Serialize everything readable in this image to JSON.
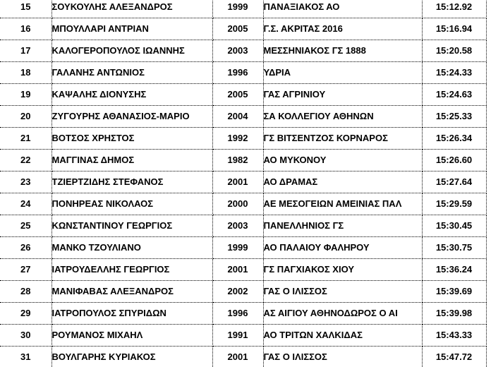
{
  "page": {
    "background": "#ffffff"
  },
  "colors": {
    "text": "#000000",
    "grid_lines": "#000000"
  },
  "results_table": {
    "rows": [
      {
        "rank": "15",
        "name": "ΣΟΥΚΟΥΛΗΣ ΑΛΕΞΑΝΔΡΟΣ",
        "year": "1999",
        "club": "ΠΑΝΑΞΙΑΚΟΣ ΑΟ",
        "time": "15:12.92"
      },
      {
        "rank": "16",
        "name": "ΜΠΟΥΛΛΑΡΙ ΑΝΤΡΙΑΝ",
        "year": "2005",
        "club": "Γ.Σ. ΑΚΡΙΤΑΣ 2016",
        "time": "15:16.94"
      },
      {
        "rank": "17",
        "name": "ΚΑΛΟΓΕΡΟΠΟΥΛΟΣ ΙΩΑΝΝΗΣ",
        "year": "2003",
        "club": "ΜΕΣΣΗΝΙΑΚΟΣ ΓΣ 1888",
        "time": "15:20.58"
      },
      {
        "rank": "18",
        "name": "ΓΑΛΑΝΗΣ ΑΝΤΩΝΙΟΣ",
        "year": "1996",
        "club": "ΥΔΡΙΑ",
        "time": "15:24.33"
      },
      {
        "rank": "19",
        "name": "ΚΑΨΑΛΗΣ ΔΙΟΝΥΣΗΣ",
        "year": "2005",
        "club": "ΓΑΣ ΑΓΡΙΝΙΟΥ",
        "time": "15:24.63"
      },
      {
        "rank": "20",
        "name": "ΖΥΓΟΥΡΗΣ ΑΘΑΝΑΣΙΟΣ-ΜΑΡΙΟ",
        "year": "2004",
        "club": "ΣΑ ΚΟΛΛΕΓΙΟΥ ΑΘΗΝΩΝ",
        "time": "15:25.33"
      },
      {
        "rank": "21",
        "name": "ΒΟΤΣΟΣ ΧΡΗΣΤΟΣ",
        "year": "1992",
        "club": "ΓΣ ΒΙΤΣΕΝΤΖΟΣ ΚΟΡΝΑΡΟΣ",
        "time": "15:26.34"
      },
      {
        "rank": "22",
        "name": "ΜΑΓΓΙΝΑΣ ΔΗΜΟΣ",
        "year": "1982",
        "club": "ΑΟ ΜΥΚΟΝΟΥ",
        "time": "15:26.60"
      },
      {
        "rank": "23",
        "name": "ΤΖΙΕΡΤΖΙΔΗΣ ΣΤΕΦΑΝΟΣ",
        "year": "2001",
        "club": "ΑΟ ΔΡΑΜΑΣ",
        "time": "15:27.64"
      },
      {
        "rank": "24",
        "name": "ΠΟΝΗΡΕΑΣ ΝΙΚΟΛΑΟΣ",
        "year": "2000",
        "club": "ΑΕ ΜΕΣΟΓΕΙΩΝ ΑΜΕΙΝΙΑΣ ΠΑΛ",
        "time": "15:29.59"
      },
      {
        "rank": "25",
        "name": "ΚΩΝΣΤΑΝΤΙΝΟΥ ΓΕΩΡΓΙΟΣ",
        "year": "2003",
        "club": "ΠΑΝΕΛΛΗΝΙΟΣ ΓΣ",
        "time": "15:30.45"
      },
      {
        "rank": "26",
        "name": "ΜΑΝΚΟ ΤΖΟΥΛΙΑΝΟ",
        "year": "1999",
        "club": "ΑΟ ΠΑΛΑΙΟΥ ΦΑΛΗΡΟΥ",
        "time": "15:30.75"
      },
      {
        "rank": "27",
        "name": "ΙΑΤΡΟΥΔΕΛΛΗΣ ΓΕΩΡΓΙΟΣ",
        "year": "2001",
        "club": "ΓΣ ΠΑΓΧΙΑΚΟΣ ΧΙΟΥ",
        "time": "15:36.24"
      },
      {
        "rank": "28",
        "name": "ΜΑΝΙΦΑΒΑΣ ΑΛΕΞΑΝΔΡΟΣ",
        "year": "2002",
        "club": "ΓΑΣ Ο ΙΛΙΣΣΟΣ",
        "time": "15:39.69"
      },
      {
        "rank": "29",
        "name": "ΙΑΤΡΟΠΟΥΛΟΣ ΣΠΥΡΙΔΩΝ",
        "year": "1996",
        "club": "ΑΣ ΑΙΓΙΟΥ ΑΘΗΝΟΔΩΡΟΣ Ο ΑΙ",
        "time": "15:39.98"
      },
      {
        "rank": "30",
        "name": "ΡΟΥΜΑΝΟΣ ΜΙΧΑΗΛ",
        "year": "1991",
        "club": "ΑΟ ΤΡΙΤΩΝ ΧΑΛΚΙΔΑΣ",
        "time": "15:43.33"
      },
      {
        "rank": "31",
        "name": "ΒΟΥΛΓΑΡΗΣ ΚΥΡΙΑΚΟΣ",
        "year": "2001",
        "club": "ΓΑΣ Ο ΙΛΙΣΣΟΣ",
        "time": "15:47.72"
      }
    ]
  }
}
